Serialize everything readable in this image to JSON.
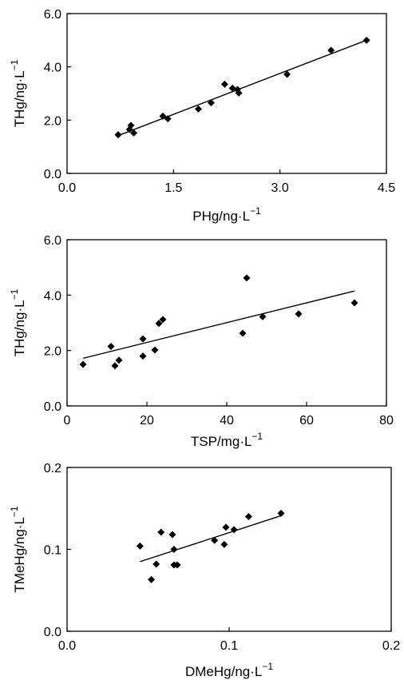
{
  "chart_data": [
    {
      "type": "scatter",
      "title": "",
      "xlabel": "PHg/ng·L",
      "xlabel_sup": "−1",
      "ylabel": "THg/ng·L",
      "ylabel_sup": "−1",
      "xlim": [
        0,
        4.5
      ],
      "ylim": [
        0,
        6
      ],
      "xticks": [
        0,
        1.5,
        3.0,
        4.5
      ],
      "xtick_labels": [
        "0.0",
        "1.5",
        "3.0",
        "4.5"
      ],
      "yticks": [
        0,
        2,
        4,
        6
      ],
      "ytick_labels": [
        "0.0",
        "2.0",
        "4.0",
        "6.0"
      ],
      "grid": false,
      "legend": "none",
      "series": [
        {
          "marker": "diamond",
          "x": [
            0.72,
            0.88,
            0.9,
            0.94,
            1.35,
            1.42,
            1.85,
            2.03,
            2.22,
            2.33,
            2.4,
            2.42,
            3.1,
            3.72,
            4.22
          ],
          "y": [
            1.45,
            1.65,
            1.8,
            1.52,
            2.15,
            2.05,
            2.42,
            2.65,
            3.35,
            3.2,
            3.15,
            3.02,
            3.72,
            4.62,
            5.0
          ]
        }
      ],
      "trendline": {
        "x": [
          0.72,
          4.22
        ],
        "y": [
          1.42,
          5.0
        ]
      }
    },
    {
      "type": "scatter",
      "title": "",
      "xlabel": "TSP/mg·L",
      "xlabel_sup": "−1",
      "ylabel": "THg/ng·L",
      "ylabel_sup": "−1",
      "xlim": [
        0,
        80
      ],
      "ylim": [
        0,
        6
      ],
      "xticks": [
        0,
        20,
        40,
        60,
        80
      ],
      "xtick_labels": [
        "0",
        "20",
        "40",
        "60",
        "80"
      ],
      "yticks": [
        0,
        2,
        4,
        6
      ],
      "ytick_labels": [
        "0.0",
        "2.0",
        "4.0",
        "6.0"
      ],
      "grid": false,
      "legend": "none",
      "series": [
        {
          "marker": "diamond",
          "x": [
            4,
            11,
            12,
            13,
            19,
            19,
            22,
            23,
            24,
            44,
            45,
            49,
            58,
            72
          ],
          "y": [
            1.5,
            2.15,
            1.45,
            1.65,
            2.42,
            1.8,
            2.02,
            2.98,
            3.12,
            2.62,
            4.62,
            3.22,
            3.32,
            3.72
          ]
        }
      ],
      "trendline": {
        "x": [
          4,
          72
        ],
        "y": [
          1.72,
          4.15
        ]
      }
    },
    {
      "type": "scatter",
      "title": "",
      "xlabel": "DMeHg/ng·L",
      "xlabel_sup": "−1",
      "ylabel": "TMeHg/ng·L",
      "ylabel_sup": "−1",
      "xlim": [
        0,
        0.2
      ],
      "ylim": [
        0,
        0.2
      ],
      "xticks": [
        0,
        0.1,
        0.2
      ],
      "xtick_labels": [
        "0.0",
        "0.1",
        "0.2"
      ],
      "yticks": [
        0,
        0.1,
        0.2
      ],
      "ytick_labels": [
        "0.0",
        "0.1",
        "0.2"
      ],
      "grid": false,
      "legend": "none",
      "series": [
        {
          "marker": "diamond",
          "x": [
            0.045,
            0.052,
            0.055,
            0.058,
            0.065,
            0.066,
            0.066,
            0.068,
            0.091,
            0.097,
            0.098,
            0.103,
            0.112,
            0.132
          ],
          "y": [
            0.104,
            0.063,
            0.082,
            0.121,
            0.118,
            0.081,
            0.1,
            0.081,
            0.111,
            0.106,
            0.127,
            0.124,
            0.14,
            0.144
          ]
        }
      ],
      "trendline": {
        "x": [
          0.045,
          0.132
        ],
        "y": [
          0.085,
          0.141
        ]
      }
    }
  ]
}
